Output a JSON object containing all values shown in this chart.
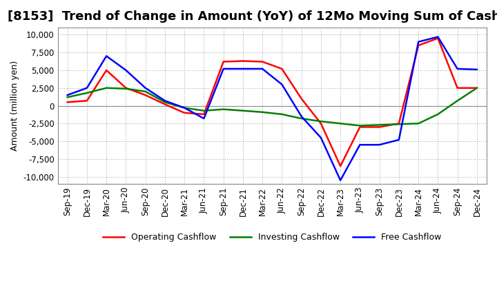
{
  "title": "[8153]  Trend of Change in Amount (YoY) of 12Mo Moving Sum of Cashflows",
  "ylabel": "Amount (million yen)",
  "x_labels": [
    "Sep-19",
    "Dec-19",
    "Mar-20",
    "Jun-20",
    "Sep-20",
    "Dec-20",
    "Mar-21",
    "Jun-21",
    "Sep-21",
    "Dec-21",
    "Mar-22",
    "Jun-22",
    "Sep-22",
    "Dec-22",
    "Mar-23",
    "Jun-23",
    "Sep-23",
    "Dec-23",
    "Mar-24",
    "Jun-24",
    "Sep-24",
    "Dec-24"
  ],
  "operating": [
    500,
    700,
    5000,
    2500,
    1500,
    200,
    -1000,
    -1200,
    6200,
    6300,
    6200,
    5200,
    1000,
    -2500,
    -8500,
    -3000,
    -3000,
    -2500,
    8500,
    9500,
    2500,
    2500
  ],
  "investing": [
    1200,
    1800,
    2500,
    2400,
    2000,
    500,
    -300,
    -700,
    -500,
    -700,
    -900,
    -1200,
    -1800,
    -2200,
    -2500,
    -2800,
    -2700,
    -2600,
    -2500,
    -1200,
    700,
    2500
  ],
  "free": [
    1500,
    2500,
    7000,
    5000,
    2500,
    700,
    -300,
    -1800,
    5200,
    5200,
    5200,
    3000,
    -1500,
    -4500,
    -10500,
    -5500,
    -5500,
    -4800,
    9000,
    9700,
    5200,
    5100
  ],
  "operating_color": "#ff0000",
  "investing_color": "#008000",
  "free_color": "#0000ff",
  "ylim": [
    -11000,
    11000
  ],
  "yticks": [
    -10000,
    -7500,
    -5000,
    -2500,
    0,
    2500,
    5000,
    7500,
    10000
  ],
  "background_color": "#ffffff",
  "grid_color": "#b0b0b0",
  "title_fontsize": 13,
  "label_fontsize": 9,
  "tick_fontsize": 8.5
}
